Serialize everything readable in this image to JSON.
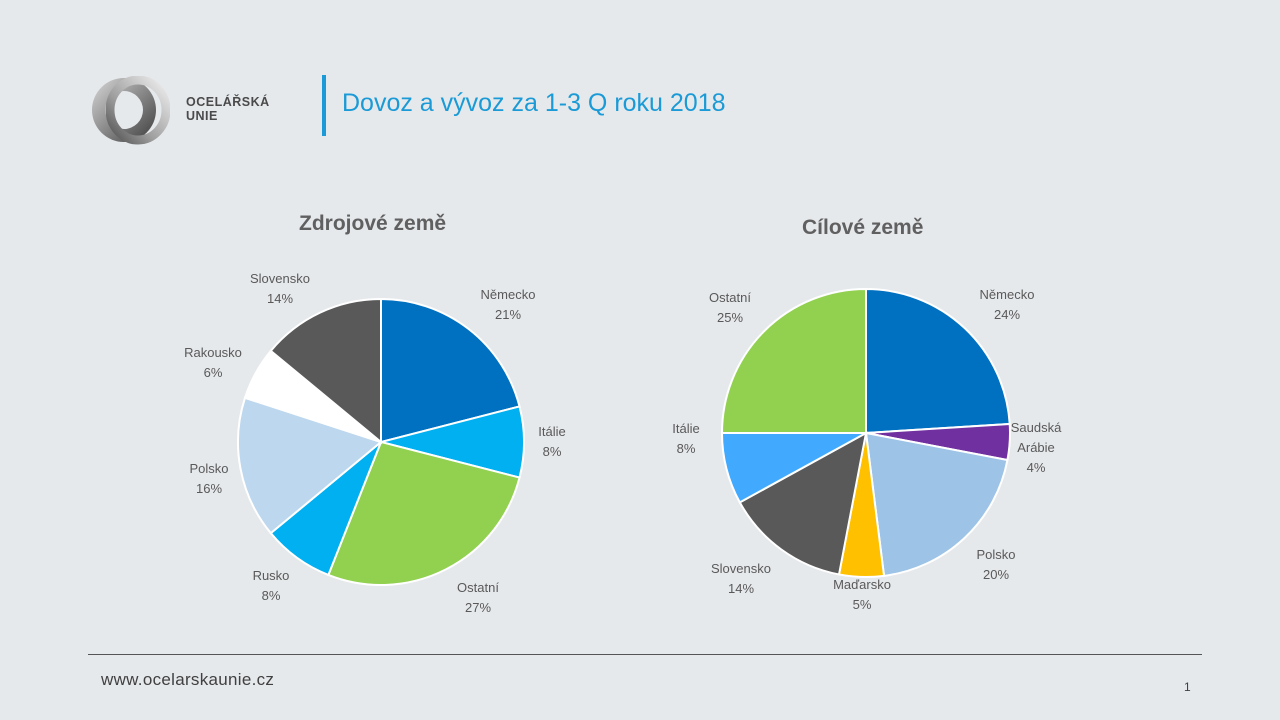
{
  "logo": {
    "line1": "OCELÁŘSKÁ",
    "line2": "UNIE"
  },
  "title": "Dovoz a vývoz za 1-3 Q roku 2018",
  "footer": {
    "url": "www.ocelarskaunie.cz",
    "page": "1"
  },
  "chart_data": [
    {
      "type": "pie",
      "title": "Zdrojové země",
      "slices": [
        {
          "label": "Německo",
          "value": 21,
          "pct": "21%",
          "color": "#0070c0"
        },
        {
          "label": "Itálie",
          "value": 8,
          "pct": "8%",
          "color": "#00b0f0"
        },
        {
          "label": "Ostatní",
          "value": 27,
          "pct": "27%",
          "color": "#92d050"
        },
        {
          "label": "Rusko",
          "value": 8,
          "pct": "8%",
          "color": "#00b0f0"
        },
        {
          "label": "Polsko",
          "value": 16,
          "pct": "16%",
          "color": "#bdd7ee"
        },
        {
          "label": "Rakousko",
          "value": 6,
          "pct": "6%",
          "color": "#ffffff"
        },
        {
          "label": "Slovensko",
          "value": 14,
          "pct": "14%",
          "color": "#595959"
        }
      ]
    },
    {
      "type": "pie",
      "title": "Cílové země",
      "slices": [
        {
          "label": "Německo",
          "value": 24,
          "pct": "24%",
          "color": "#0070c0"
        },
        {
          "label": "Saudská Arábie",
          "value": 4,
          "pct": "4%",
          "color": "#7030a0"
        },
        {
          "label": "Polsko",
          "value": 20,
          "pct": "20%",
          "color": "#9dc3e6"
        },
        {
          "label": "Maďarsko",
          "value": 5,
          "pct": "5%",
          "color": "#ffc000"
        },
        {
          "label": "Slovensko",
          "value": 14,
          "pct": "14%",
          "color": "#595959"
        },
        {
          "label": "Itálie",
          "value": 8,
          "pct": "8%",
          "color": "#41aaff"
        },
        {
          "label": "Ostatní",
          "value": 25,
          "pct": "25%",
          "color": "#92d050"
        }
      ]
    }
  ]
}
